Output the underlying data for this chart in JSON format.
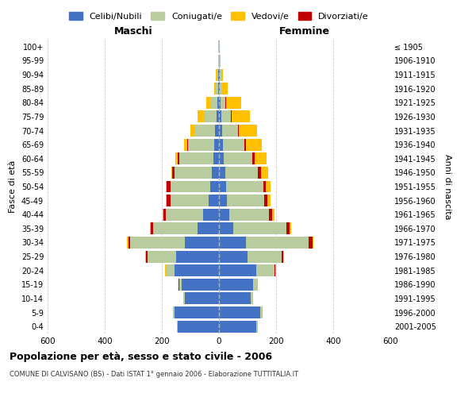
{
  "age_groups": [
    "0-4",
    "5-9",
    "10-14",
    "15-19",
    "20-24",
    "25-29",
    "30-34",
    "35-39",
    "40-44",
    "45-49",
    "50-54",
    "55-59",
    "60-64",
    "65-69",
    "70-74",
    "75-79",
    "80-84",
    "85-89",
    "90-94",
    "95-99",
    "100+"
  ],
  "birth_years": [
    "2001-2005",
    "1996-2000",
    "1991-1995",
    "1986-1990",
    "1981-1985",
    "1976-1980",
    "1971-1975",
    "1966-1970",
    "1961-1965",
    "1956-1960",
    "1951-1955",
    "1946-1950",
    "1941-1945",
    "1936-1940",
    "1931-1935",
    "1926-1930",
    "1921-1925",
    "1916-1920",
    "1911-1915",
    "1906-1910",
    "≤ 1905"
  ],
  "male": {
    "celibi": [
      145,
      155,
      120,
      130,
      155,
      150,
      120,
      75,
      55,
      35,
      30,
      25,
      20,
      18,
      15,
      8,
      5,
      3,
      2,
      1,
      1
    ],
    "coniugati": [
      3,
      5,
      5,
      10,
      30,
      100,
      190,
      155,
      130,
      135,
      140,
      130,
      120,
      90,
      70,
      45,
      25,
      8,
      5,
      2,
      1
    ],
    "vedovi": [
      0,
      0,
      0,
      1,
      2,
      3,
      3,
      3,
      3,
      4,
      4,
      5,
      8,
      12,
      15,
      20,
      15,
      5,
      3,
      1,
      0
    ],
    "divorziati": [
      0,
      0,
      0,
      1,
      2,
      5,
      8,
      10,
      10,
      12,
      12,
      8,
      5,
      2,
      1,
      1,
      0,
      0,
      0,
      0,
      0
    ]
  },
  "female": {
    "nubili": [
      130,
      145,
      110,
      120,
      130,
      100,
      95,
      50,
      35,
      28,
      25,
      22,
      18,
      15,
      12,
      8,
      5,
      3,
      2,
      1,
      1
    ],
    "coniugate": [
      5,
      8,
      10,
      15,
      65,
      120,
      220,
      185,
      140,
      130,
      130,
      115,
      100,
      75,
      55,
      35,
      18,
      8,
      5,
      2,
      1
    ],
    "vedove": [
      0,
      0,
      0,
      1,
      2,
      3,
      4,
      5,
      8,
      10,
      15,
      25,
      40,
      55,
      65,
      65,
      55,
      20,
      8,
      3,
      1
    ],
    "divorziate": [
      0,
      0,
      0,
      1,
      3,
      5,
      12,
      12,
      12,
      12,
      10,
      10,
      8,
      4,
      2,
      1,
      1,
      0,
      0,
      0,
      0
    ]
  },
  "colors": {
    "celibi": "#4472c4",
    "coniugati": "#b8cca0",
    "vedovi": "#ffc000",
    "divorziati": "#c00000"
  },
  "title": "Popolazione per età, sesso e stato civile - 2006",
  "subtitle": "COMUNE DI CALVISANO (BS) - Dati ISTAT 1° gennaio 2006 - Elaborazione TUTTITALIA.IT",
  "xlabel_left": "Maschi",
  "xlabel_right": "Femmine",
  "ylabel_left": "Fasce di età",
  "ylabel_right": "Anni di nascita",
  "xlim": 600,
  "legend_labels": [
    "Celibi/Nubili",
    "Coniugati/e",
    "Vedovi/e",
    "Divorziati/e"
  ],
  "background_color": "#ffffff",
  "grid_color": "#cccccc"
}
